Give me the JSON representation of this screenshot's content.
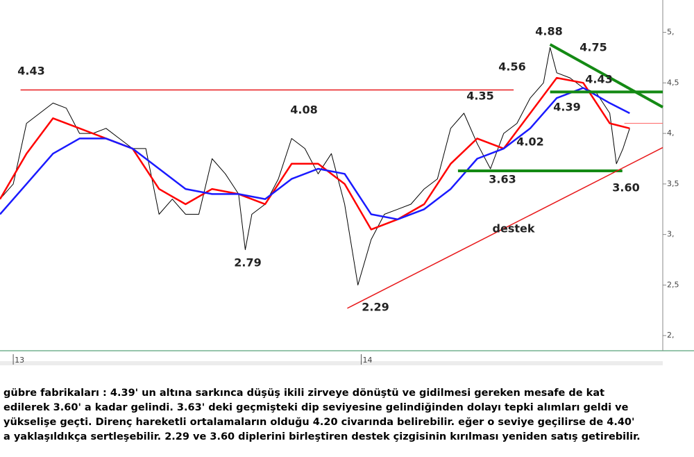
{
  "chart_data": {
    "type": "line",
    "xlim": [
      0,
      100
    ],
    "xticks": [
      {
        "value": 2,
        "label": "13"
      },
      {
        "value": 54.5,
        "label": "14"
      }
    ],
    "ylim": [
      1.85,
      5.32
    ],
    "yticks": [
      {
        "value": 5,
        "label": "5,"
      },
      {
        "value": 4.5,
        "label": "4,5"
      },
      {
        "value": 4,
        "label": "4,"
      },
      {
        "value": 3.5,
        "label": "3,5"
      },
      {
        "value": 3,
        "label": "3,"
      },
      {
        "value": 2.5,
        "label": "2,5"
      },
      {
        "value": 2,
        "label": "2,"
      }
    ],
    "series": [
      {
        "color": "#000000",
        "width": 1,
        "x": [
          0,
          2,
          4,
          6,
          8,
          10,
          12,
          14,
          16,
          18,
          20,
          22,
          24,
          26,
          28,
          30,
          32,
          34,
          36,
          37,
          38,
          40,
          42,
          44,
          46,
          48,
          50,
          52,
          54,
          56,
          58,
          60,
          62,
          64,
          66,
          68,
          70,
          72,
          74,
          76,
          78,
          80,
          82,
          83,
          84,
          86,
          88,
          90,
          92,
          93,
          94,
          95
        ],
        "values": [
          3.35,
          3.5,
          4.1,
          4.2,
          4.3,
          4.25,
          4.0,
          4.0,
          4.05,
          3.95,
          3.85,
          3.85,
          3.2,
          3.35,
          3.2,
          3.2,
          3.75,
          3.6,
          3.4,
          2.85,
          3.2,
          3.3,
          3.55,
          3.95,
          3.85,
          3.6,
          3.8,
          3.3,
          2.5,
          2.95,
          3.2,
          3.25,
          3.3,
          3.45,
          3.55,
          4.05,
          4.2,
          3.9,
          3.65,
          4.0,
          4.1,
          4.35,
          4.5,
          4.85,
          4.6,
          4.55,
          4.45,
          4.4,
          4.2,
          3.7,
          3.85,
          4.05
        ]
      },
      {
        "color": "#ff0000",
        "width": 2.5,
        "x": [
          0,
          4,
          8,
          12,
          16,
          20,
          24,
          28,
          32,
          36,
          40,
          44,
          48,
          52,
          56,
          60,
          64,
          68,
          72,
          76,
          80,
          84,
          88,
          92,
          95
        ],
        "values": [
          3.35,
          3.8,
          4.15,
          4.05,
          3.95,
          3.85,
          3.45,
          3.3,
          3.45,
          3.4,
          3.3,
          3.7,
          3.7,
          3.5,
          3.05,
          3.15,
          3.3,
          3.7,
          3.95,
          3.85,
          4.2,
          4.55,
          4.5,
          4.1,
          4.05
        ]
      },
      {
        "color": "#1a1aff",
        "width": 2.5,
        "x": [
          0,
          4,
          8,
          12,
          16,
          20,
          24,
          28,
          32,
          36,
          40,
          44,
          48,
          52,
          56,
          60,
          64,
          68,
          72,
          76,
          80,
          84,
          88,
          92,
          95
        ],
        "values": [
          3.2,
          3.5,
          3.8,
          3.95,
          3.95,
          3.85,
          3.65,
          3.45,
          3.4,
          3.4,
          3.35,
          3.55,
          3.65,
          3.6,
          3.2,
          3.15,
          3.25,
          3.45,
          3.75,
          3.85,
          4.05,
          4.35,
          4.45,
          4.3,
          4.2
        ]
      }
    ],
    "lines": [
      {
        "color": "#e8191b",
        "width": 1.5,
        "x": [
          3.1,
          77.5
        ],
        "y": [
          4.43,
          4.43
        ]
      },
      {
        "color": "#ff6666",
        "width": 1,
        "x": [
          94.2,
          100
        ],
        "y": [
          4.1,
          4.1
        ]
      },
      {
        "color": "#148a14",
        "width": 4,
        "x": [
          83,
          100
        ],
        "y": [
          4.41,
          4.41
        ]
      },
      {
        "color": "#148a14",
        "width": 4,
        "x": [
          69.1,
          93.9
        ],
        "y": [
          3.63,
          3.63
        ]
      },
      {
        "color": "#148a14",
        "width": 4,
        "x": [
          83,
          100
        ],
        "y": [
          4.88,
          4.26
        ]
      },
      {
        "color": "#e8191b",
        "width": 1.5,
        "x": [
          52.4,
          100
        ],
        "y": [
          2.27,
          3.86
        ]
      }
    ],
    "annotations": [
      "4.43",
      "2.79",
      "4.08",
      "2.29",
      "4.35",
      "3.63",
      "4.56",
      "4.02",
      "4.88",
      "4.75",
      "4.43",
      "4.39",
      "3.60",
      "destek"
    ],
    "caption": [
      "gübre fabrikaları : 4.39' un altına sarkınca düşüş ikili zirveye dönüştü ve gidilmesi gereken mesafe de kat",
      "edilerek 3.60' a kadar gelindi. 3.63' deki geçmişteki dip seviyesine gelindiğinden dolayı tepki alımları geldi ve",
      "yükselişe geçti. Direnç hareketli ortalamaların olduğu 4.20 civarında belirebilir. eğer o seviye geçilirse de 4.40'",
      "a yaklaşıldıkça sertleşebilir. 2.29 ve 3.60 diplerini birleştiren destek çizgisinin kırılması yeniden satış getirebilir."
    ]
  }
}
